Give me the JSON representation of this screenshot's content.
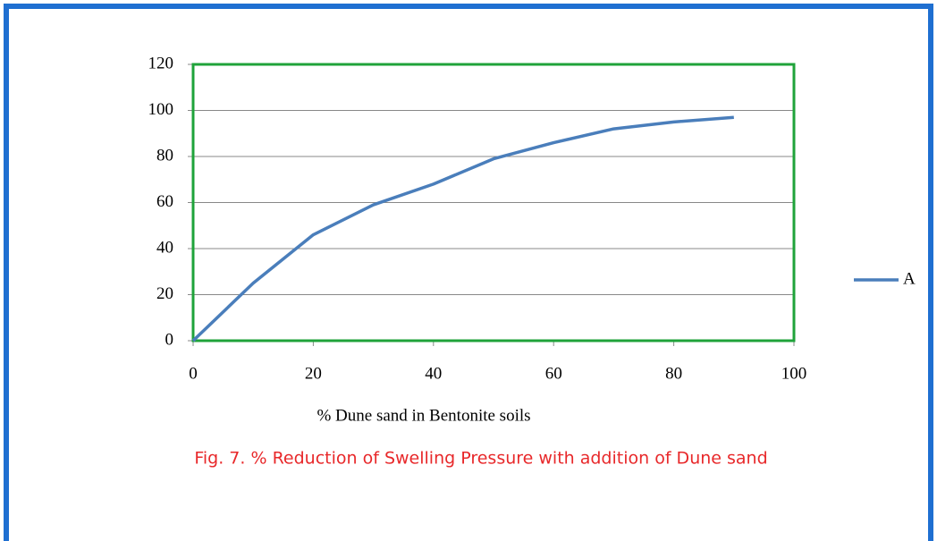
{
  "chart_data": {
    "type": "line",
    "x_label": "% Dune sand in Bentonite soils",
    "caption": "Fig. 7.  %  Reduction of  Swelling Pressure with addition of  Dune sand",
    "x": [
      0,
      10,
      20,
      30,
      40,
      50,
      60,
      70,
      80,
      90
    ],
    "series": [
      {
        "name": "A",
        "color": "#4a7ebb",
        "values": [
          0,
          25,
          46,
          59,
          68,
          79,
          86,
          92,
          95,
          97
        ]
      }
    ],
    "xlim": [
      0,
      100
    ],
    "xticks": [
      0,
      20,
      40,
      60,
      80,
      100
    ],
    "ylim": [
      0,
      120
    ],
    "yticks": [
      0,
      20,
      40,
      60,
      80,
      100,
      120
    ],
    "grid": true,
    "legend": "right",
    "plot_border_color": "#1fa33a"
  }
}
